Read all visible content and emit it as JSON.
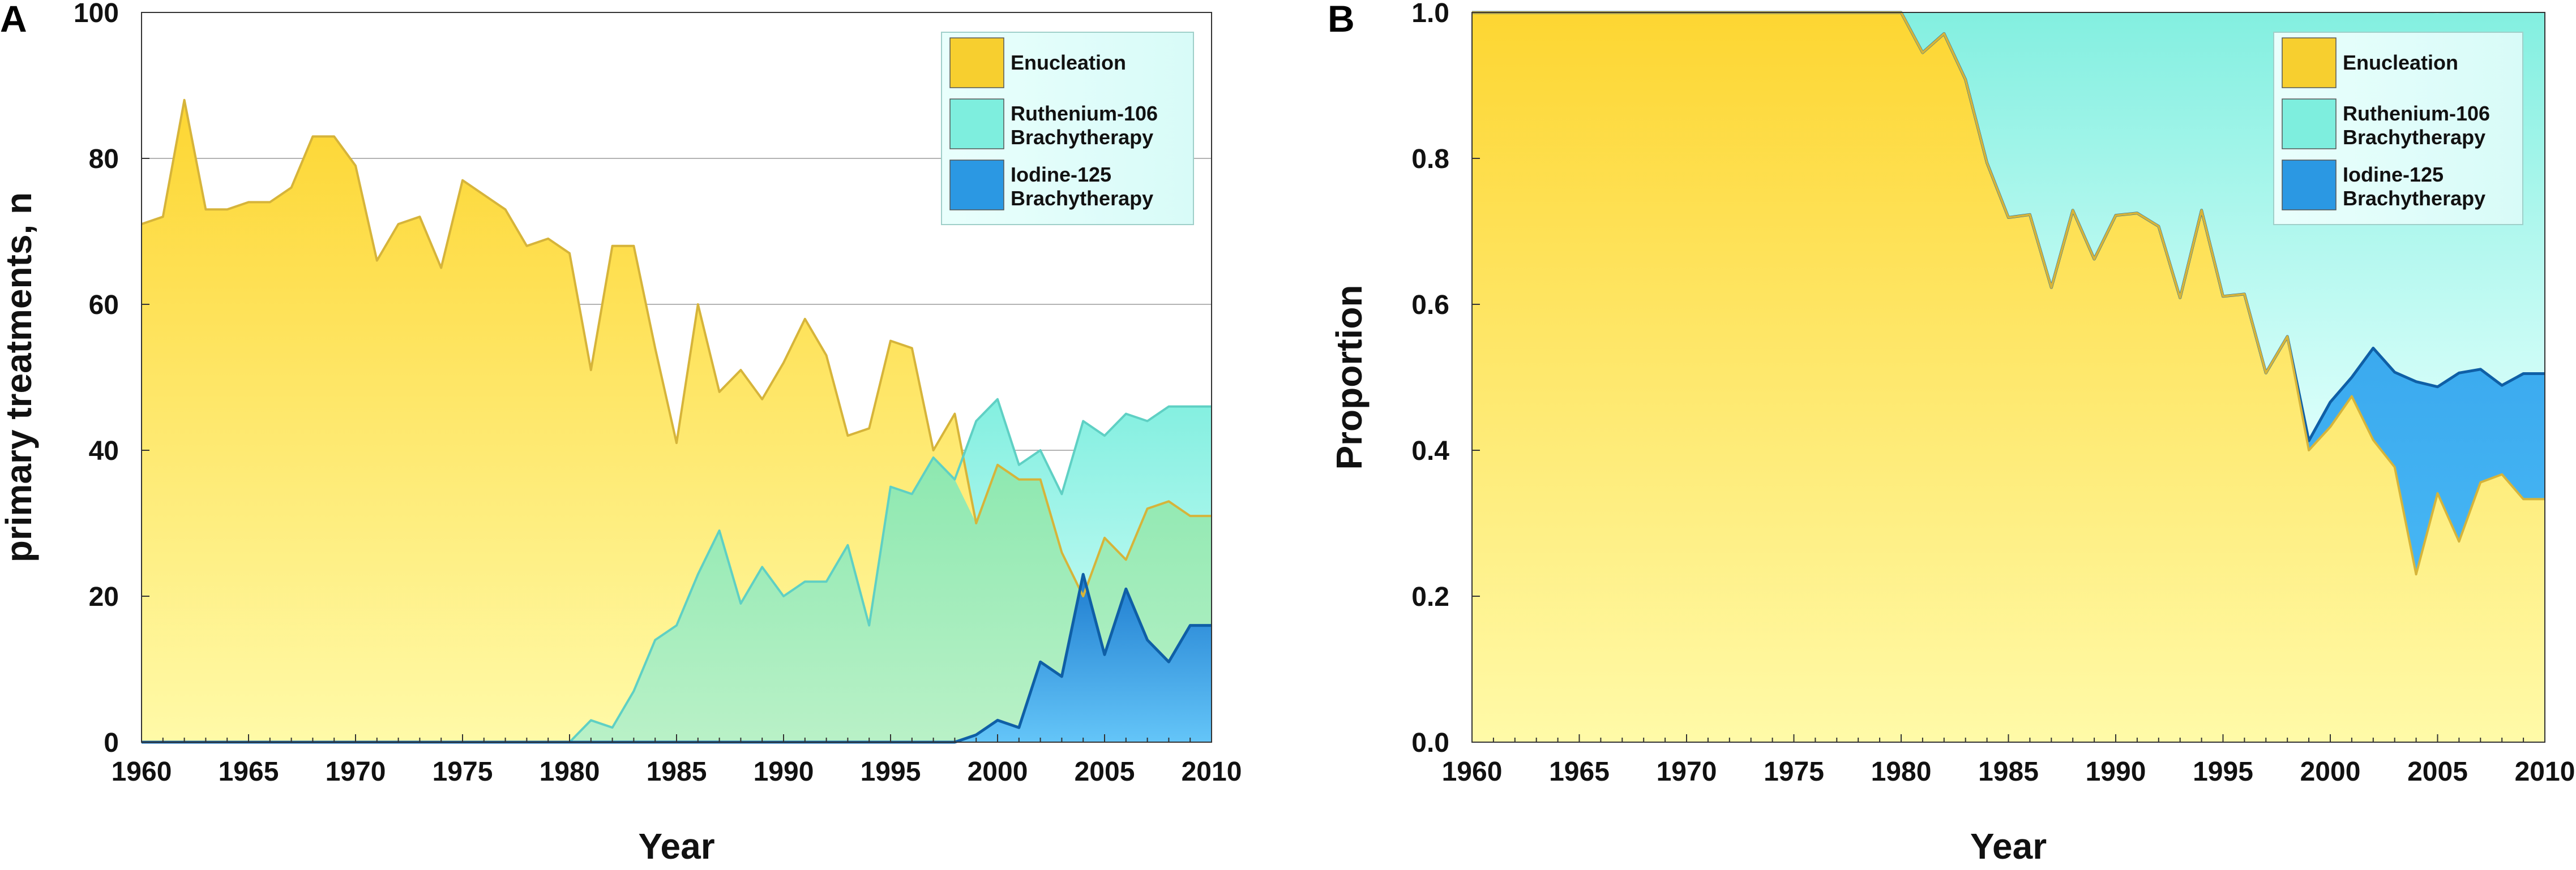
{
  "chart_data": [
    {
      "panel_label": "A",
      "type": "area",
      "stacking": "overlapping",
      "title": "",
      "xlabel": "Year",
      "ylabel": "primary treatments, n",
      "xlim": [
        1960,
        2010
      ],
      "ylim": [
        0,
        100
      ],
      "xticks": [
        "1960",
        "1965",
        "1970",
        "1975",
        "1980",
        "1985",
        "1990",
        "1995",
        "2000",
        "2005",
        "2010"
      ],
      "yticks": [
        "0",
        "20",
        "40",
        "60",
        "80",
        "100"
      ],
      "grid": true,
      "legend_position": "top-right",
      "x": [
        1960,
        1961,
        1962,
        1963,
        1964,
        1965,
        1966,
        1967,
        1968,
        1969,
        1970,
        1971,
        1972,
        1973,
        1974,
        1975,
        1976,
        1977,
        1978,
        1979,
        1980,
        1981,
        1982,
        1983,
        1984,
        1985,
        1986,
        1987,
        1988,
        1989,
        1990,
        1991,
        1992,
        1993,
        1994,
        1995,
        1996,
        1997,
        1998,
        1999,
        2000,
        2001,
        2002,
        2003,
        2004,
        2005,
        2006,
        2007,
        2008,
        2009,
        2010
      ],
      "series": [
        {
          "name": "Enucleation",
          "color": "#f2cb2e",
          "values": [
            71,
            72,
            88,
            73,
            73,
            74,
            74,
            76,
            83,
            83,
            79,
            66,
            71,
            72,
            65,
            77,
            75,
            73,
            68,
            69,
            67,
            51,
            68,
            68,
            54,
            41,
            60,
            48,
            51,
            47,
            52,
            58,
            53,
            42,
            43,
            55,
            54,
            40,
            45,
            30,
            38,
            36,
            36,
            26,
            20,
            28,
            25,
            32,
            33,
            31,
            31
          ]
        },
        {
          "name": "Ruthenium-106\nBrachytherapy",
          "color": "#6fe3d6",
          "values": [
            0,
            0,
            0,
            0,
            0,
            0,
            0,
            0,
            0,
            0,
            0,
            0,
            0,
            0,
            0,
            0,
            0,
            0,
            0,
            0,
            0,
            3,
            2,
            7,
            14,
            16,
            23,
            29,
            19,
            24,
            20,
            22,
            22,
            27,
            16,
            35,
            34,
            39,
            36,
            44,
            47,
            38,
            40,
            34,
            44,
            42,
            45,
            44,
            46,
            46,
            46
          ]
        },
        {
          "name": "Iodine-125\nBrachytherapy",
          "color": "#1b86d4",
          "values": [
            0,
            0,
            0,
            0,
            0,
            0,
            0,
            0,
            0,
            0,
            0,
            0,
            0,
            0,
            0,
            0,
            0,
            0,
            0,
            0,
            0,
            0,
            0,
            0,
            0,
            0,
            0,
            0,
            0,
            0,
            0,
            0,
            0,
            0,
            0,
            0,
            0,
            0,
            0,
            1,
            3,
            2,
            11,
            9,
            23,
            12,
            21,
            14,
            11,
            16,
            16
          ]
        }
      ]
    },
    {
      "panel_label": "B",
      "type": "area",
      "stacking": "proportion",
      "title": "",
      "xlabel": "Year",
      "ylabel": "Proportion",
      "xlim": [
        1960,
        2010
      ],
      "ylim": [
        0,
        1
      ],
      "xticks": [
        "1960",
        "1965",
        "1970",
        "1975",
        "1980",
        "1985",
        "1990",
        "1995",
        "2000",
        "2005",
        "2010"
      ],
      "yticks": [
        "0.0",
        "0.2",
        "0.4",
        "0.6",
        "0.8",
        "1.0"
      ],
      "grid": false,
      "legend_position": "top-right",
      "x": [
        1960,
        1961,
        1962,
        1963,
        1964,
        1965,
        1966,
        1967,
        1968,
        1969,
        1970,
        1971,
        1972,
        1973,
        1974,
        1975,
        1976,
        1977,
        1978,
        1979,
        1980,
        1981,
        1982,
        1983,
        1984,
        1985,
        1986,
        1987,
        1988,
        1989,
        1990,
        1991,
        1992,
        1993,
        1994,
        1995,
        1996,
        1997,
        1998,
        1999,
        2000,
        2001,
        2002,
        2003,
        2004,
        2005,
        2006,
        2007,
        2008,
        2009,
        2010
      ],
      "series": [
        {
          "name": "Enucleation",
          "color": "#f2cb2e",
          "values": [
            1,
            1,
            1,
            1,
            1,
            1,
            1,
            1,
            1,
            1,
            1,
            1,
            1,
            1,
            1,
            1,
            1,
            1,
            1,
            1,
            1,
            0.945,
            0.971,
            0.908,
            0.794,
            0.719,
            0.723,
            0.623,
            0.729,
            0.662,
            0.722,
            0.725,
            0.707,
            0.609,
            0.729,
            0.611,
            0.614,
            0.506,
            0.556,
            0.4,
            0.432,
            0.474,
            0.414,
            0.377,
            0.23,
            0.341,
            0.275,
            0.356,
            0.367,
            0.333,
            0.333
          ]
        },
        {
          "name": "Ruthenium-106\nBrachytherapy",
          "color": "#6fe3d6",
          "values": [
            0,
            0,
            0,
            0,
            0,
            0,
            0,
            0,
            0,
            0,
            0,
            0,
            0,
            0,
            0,
            0,
            0,
            0,
            0,
            0,
            0,
            0.055,
            0.029,
            0.092,
            0.206,
            0.281,
            0.277,
            0.377,
            0.271,
            0.338,
            0.278,
            0.275,
            0.293,
            0.391,
            0.271,
            0.389,
            0.386,
            0.494,
            0.444,
            0.587,
            0.534,
            0.5,
            0.46,
            0.493,
            0.506,
            0.512,
            0.495,
            0.489,
            0.511,
            0.495,
            0.495
          ]
        },
        {
          "name": "Iodine-125\nBrachytherapy",
          "color": "#1b86d4",
          "values": [
            0,
            0,
            0,
            0,
            0,
            0,
            0,
            0,
            0,
            0,
            0,
            0,
            0,
            0,
            0,
            0,
            0,
            0,
            0,
            0,
            0,
            0,
            0,
            0,
            0,
            0,
            0,
            0,
            0,
            0,
            0,
            0,
            0,
            0,
            0,
            0,
            0,
            0,
            0,
            0.013,
            0.034,
            0.026,
            0.126,
            0.13,
            0.264,
            0.146,
            0.231,
            0.155,
            0.122,
            0.172,
            0.172
          ]
        }
      ]
    }
  ]
}
